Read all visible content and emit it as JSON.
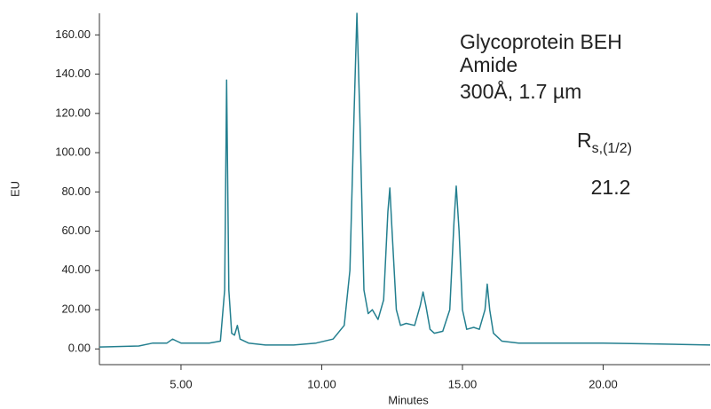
{
  "chart_data": {
    "type": "line",
    "x_label": "Minutes",
    "y_label": "EU",
    "annotations": [
      "Glycoprotein BEH",
      "Amide",
      "300Å, 1.7 µm"
    ],
    "resolution_label": {
      "main": "R",
      "sub": "s,(1/2)"
    },
    "resolution_value": "21.2",
    "color": "#237f8f",
    "x": [
      2.1,
      3.5,
      4.0,
      4.5,
      4.7,
      4.85,
      5.0,
      6.0,
      6.4,
      6.55,
      6.62,
      6.7,
      6.8,
      6.9,
      7.0,
      7.1,
      7.4,
      8.0,
      9.0,
      9.8,
      10.4,
      10.8,
      11.0,
      11.15,
      11.25,
      11.35,
      11.5,
      11.65,
      11.8,
      12.0,
      12.2,
      12.35,
      12.42,
      12.5,
      12.65,
      12.8,
      13.0,
      13.3,
      13.5,
      13.6,
      13.7,
      13.85,
      14.0,
      14.3,
      14.55,
      14.7,
      14.78,
      14.88,
      15.0,
      15.15,
      15.4,
      15.6,
      15.8,
      15.88,
      15.97,
      16.1,
      16.4,
      17.0,
      20.0,
      22.0,
      23.8
    ],
    "values": [
      1,
      1.5,
      3,
      3,
      5,
      4,
      3,
      3,
      4,
      30,
      137,
      30,
      8,
      7,
      12,
      5,
      3,
      2,
      2,
      3,
      5,
      12,
      40,
      120,
      171,
      120,
      30,
      18,
      20,
      15,
      25,
      70,
      82,
      60,
      20,
      12,
      13,
      12,
      22,
      29,
      22,
      10,
      8,
      9,
      20,
      65,
      83,
      60,
      20,
      10,
      11,
      10,
      20,
      33,
      20,
      8,
      4,
      3,
      3,
      2.5,
      2
    ],
    "xlim": [
      2.1,
      23.8
    ],
    "ylim": [
      -8,
      171
    ],
    "xticks": [
      {
        "value": 5,
        "label": "5.00"
      },
      {
        "value": 10,
        "label": "10.00"
      },
      {
        "value": 15,
        "label": "15.00"
      },
      {
        "value": 20,
        "label": "20.00"
      }
    ],
    "yticks": [
      {
        "value": 0,
        "label": "0.00"
      },
      {
        "value": 20,
        "label": "20.00"
      },
      {
        "value": 40,
        "label": "40.00"
      },
      {
        "value": 60,
        "label": "60.00"
      },
      {
        "value": 80,
        "label": "80.00"
      },
      {
        "value": 100,
        "label": "100.00"
      },
      {
        "value": 120,
        "label": "120.00"
      },
      {
        "value": 140,
        "label": "140.00"
      },
      {
        "value": 160,
        "label": "160.00"
      }
    ]
  }
}
